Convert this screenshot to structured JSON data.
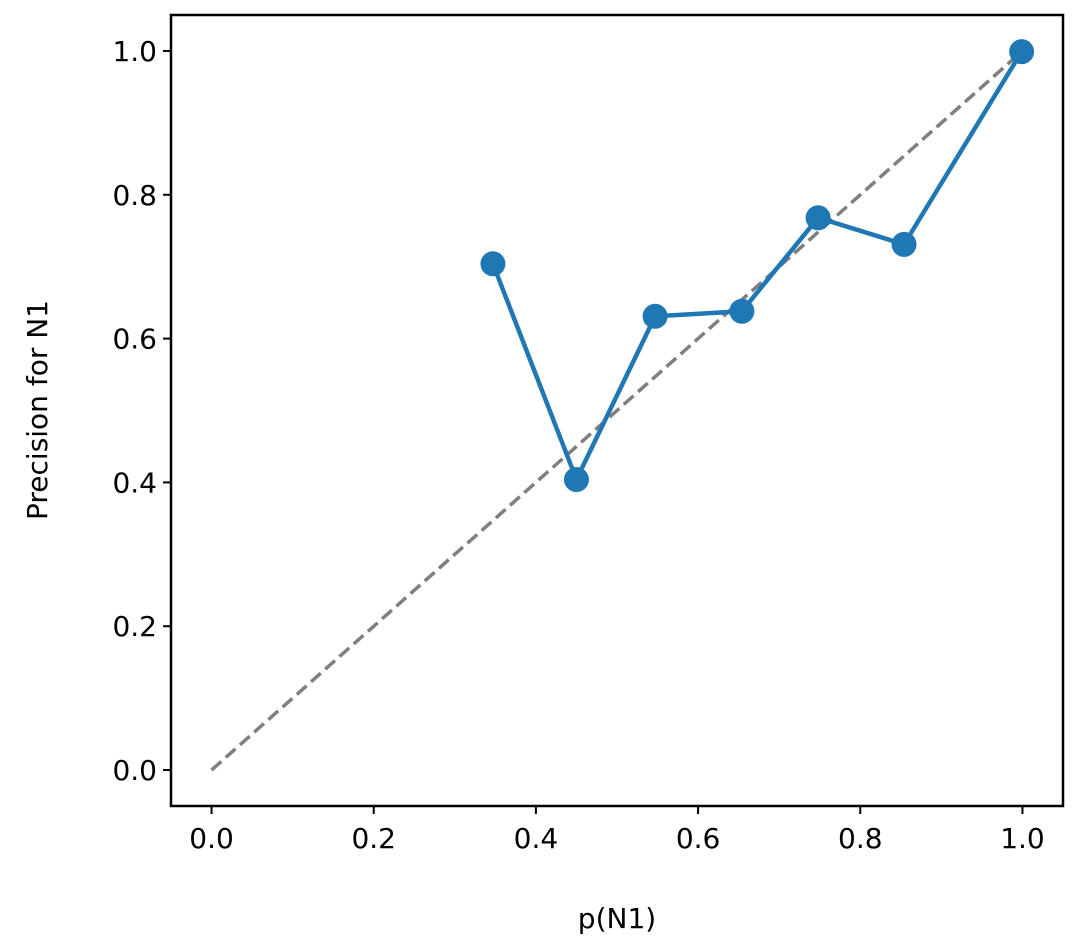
{
  "chart_data": {
    "type": "line",
    "x_label": "p(N1)",
    "y_label": "Precision for N1",
    "x": [
      0.347,
      0.45,
      0.547,
      0.654,
      0.748,
      0.854,
      0.999
    ],
    "values": [
      0.704,
      0.404,
      0.631,
      0.638,
      0.768,
      0.731,
      0.999
    ],
    "color": "#1f77b4",
    "reference_line": {
      "x": [
        0,
        1
      ],
      "values": [
        0,
        1
      ],
      "color": "#7f7f7f"
    },
    "xlim": [
      -0.05,
      1.05
    ],
    "ylim": [
      -0.05,
      1.05
    ],
    "xticks": [
      {
        "value": 0,
        "label": "0.0"
      },
      0.2,
      0.4,
      0.6,
      0.8,
      {
        "value": 1,
        "label": "1.0"
      }
    ],
    "yticks": [
      {
        "value": 0,
        "label": "0.0"
      },
      0.2,
      0.4,
      0.6,
      0.8,
      {
        "value": 1,
        "label": "1.0"
      }
    ]
  }
}
